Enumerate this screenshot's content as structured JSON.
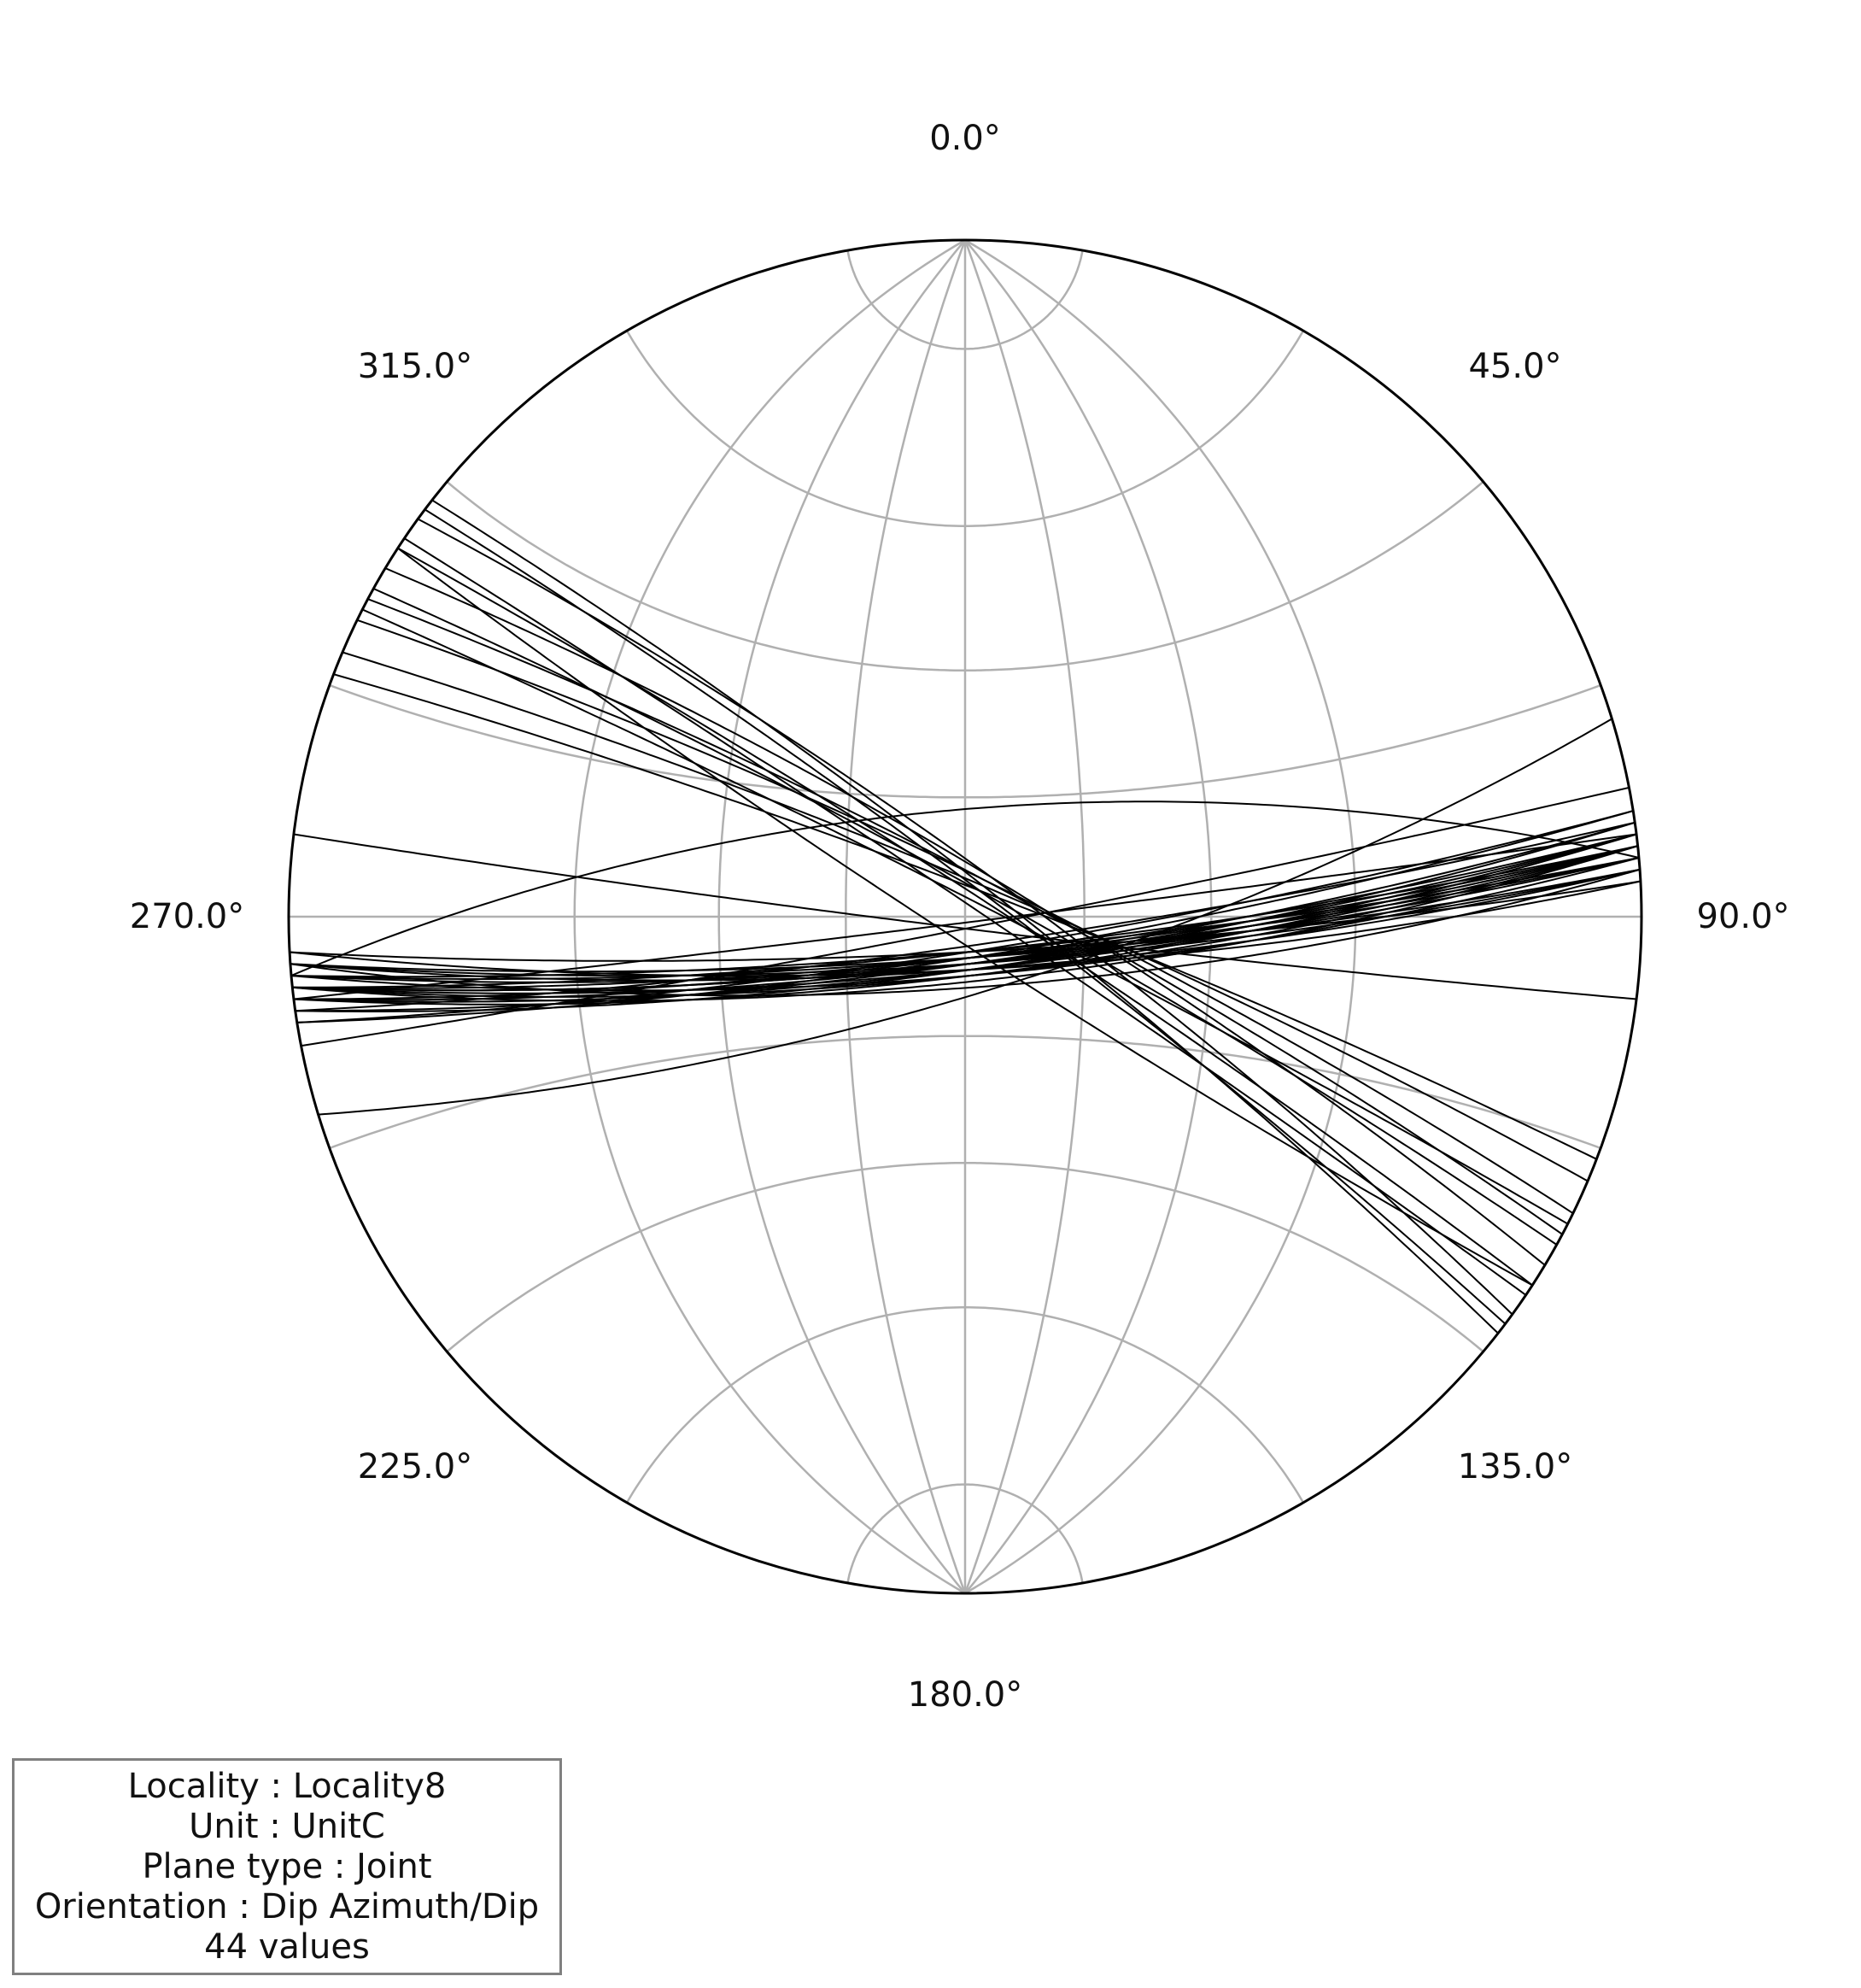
{
  "chart_data": {
    "type": "stereonet",
    "projection": "equal-angle",
    "hemisphere": "lower",
    "grid": true,
    "grid_color": "#b0b0b0",
    "plane_color": "#000000",
    "azimuth_labels": [
      "0.0°",
      "45.0°",
      "90.0°",
      "135.0°",
      "180.0°",
      "225.0°",
      "270.0°",
      "315.0°"
    ],
    "legend_position": "bottom-left",
    "legend_lines": [
      "Locality : Locality8",
      "Unit : UnitC",
      "Plane type : Joint",
      "Orientation : Dip Azimuth/Dip",
      "44 values"
    ],
    "planes": [
      {
        "dip_azimuth": 174,
        "dip": 82
      },
      {
        "dip_azimuth": 173,
        "dip": 82
      },
      {
        "dip_azimuth": 174,
        "dip": 81
      },
      {
        "dip_azimuth": 175,
        "dip": 82
      },
      {
        "dip_azimuth": 173,
        "dip": 81
      },
      {
        "dip_azimuth": 174,
        "dip": 83
      },
      {
        "dip_azimuth": 174,
        "dip": 80
      },
      {
        "dip_azimuth": 172,
        "dip": 82
      },
      {
        "dip_azimuth": 175,
        "dip": 80
      },
      {
        "dip_azimuth": 176,
        "dip": 81
      },
      {
        "dip_azimuth": 176,
        "dip": 78
      },
      {
        "dip_azimuth": 174,
        "dip": 79
      },
      {
        "dip_azimuth": 176,
        "dip": 83
      },
      {
        "dip_azimuth": 171,
        "dip": 84
      },
      {
        "dip_azimuth": 173,
        "dip": 80
      },
      {
        "dip_azimuth": 177,
        "dip": 81
      },
      {
        "dip_azimuth": 174,
        "dip": 82
      },
      {
        "dip_azimuth": 173,
        "dip": 83
      },
      {
        "dip_azimuth": 175,
        "dip": 84
      },
      {
        "dip_azimuth": 176,
        "dip": 82
      },
      {
        "dip_azimuth": 171,
        "dip": 83
      },
      {
        "dip_azimuth": 177,
        "dip": 84
      },
      {
        "dip_azimuth": 172,
        "dip": 85
      },
      {
        "dip_azimuth": 174,
        "dip": 84
      },
      {
        "dip_azimuth": 175,
        "dip": 83
      },
      {
        "dip_azimuth": 172,
        "dip": 81
      },
      {
        "dip_azimuth": 355,
        "dip": 72
      },
      {
        "dip_azimuth": 163,
        "dip": 77
      },
      {
        "dip_azimuth": 173,
        "dip": 89
      },
      {
        "dip_azimuth": 187,
        "dip": 88
      },
      {
        "dip_azimuth": 169,
        "dip": 88
      },
      {
        "dip_azimuth": 29,
        "dip": 85
      },
      {
        "dip_azimuth": 33,
        "dip": 86
      },
      {
        "dip_azimuth": 28,
        "dip": 83
      },
      {
        "dip_azimuth": 38,
        "dip": 84
      },
      {
        "dip_azimuth": 37,
        "dip": 85
      },
      {
        "dip_azimuth": 36,
        "dip": 82
      },
      {
        "dip_azimuth": 21,
        "dip": 85
      },
      {
        "dip_azimuth": 26,
        "dip": 83
      },
      {
        "dip_azimuth": 213,
        "dip": 86
      },
      {
        "dip_azimuth": 23,
        "dip": 84
      },
      {
        "dip_azimuth": 31,
        "dip": 82
      },
      {
        "dip_azimuth": 34,
        "dip": 88
      },
      {
        "dip_azimuth": 27,
        "dip": 87
      }
    ]
  }
}
